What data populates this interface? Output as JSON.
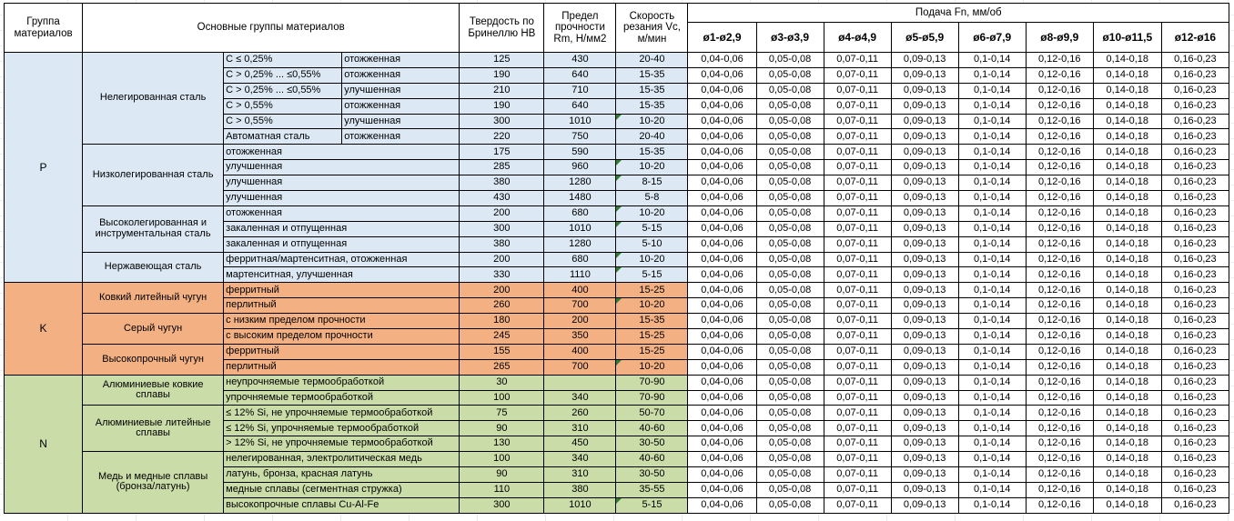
{
  "header": {
    "col_group": "Группа материалов",
    "col_main_groups": "Основные группы материалов",
    "col_hardness": "Твердость по Бринеллю HB",
    "col_strength": "Предел прочности Rm, Н/мм2",
    "col_speed": "Скорость резания Vc, м/мин",
    "feed_title": "Подача Fn, мм/об",
    "feed_cols": [
      "ø1-ø2,9",
      "ø3-ø3,9",
      "ø4-ø4,9",
      "ø5-ø5,9",
      "ø6-ø7,9",
      "ø8-ø9,9",
      "ø10-ø11,5",
      "ø12-ø16"
    ]
  },
  "feed_values": [
    "0,04-0,06",
    "0,05-0,08",
    "0,07-0,11",
    "0,09-0,13",
    "0,1-0,14",
    "0,12-0,16",
    "0,14-0,18",
    "0,16-0,23"
  ],
  "colors": {
    "p_blue": "#dce9f5",
    "k_orange": "#f3b183",
    "n_green": "#cadca8",
    "flag_green": "#2e7d32"
  },
  "groups": [
    {
      "code": "P",
      "color_key": "p_blue",
      "subgroups": [
        {
          "name": "Нелегированная сталь",
          "rows": [
            {
              "a": "C ≤ 0,25%",
              "b": "отожженная",
              "hb": "125",
              "rm": "430",
              "vc": "20-40",
              "flag": false
            },
            {
              "a": "C > 0,25% ... ≤0,55%",
              "b": "отожженная",
              "hb": "190",
              "rm": "640",
              "vc": "15-35",
              "flag": false
            },
            {
              "a": "C > 0,25% ... ≤0,55%",
              "b": "улучшенная",
              "hb": "210",
              "rm": "710",
              "vc": "15-35",
              "flag": false
            },
            {
              "a": "C > 0,55%",
              "b": "отожженная",
              "hb": "190",
              "rm": "640",
              "vc": "15-35",
              "flag": false
            },
            {
              "a": "C > 0,55%",
              "b": "улучшенная",
              "hb": "300",
              "rm": "1010",
              "vc": "10-20",
              "flag": true
            },
            {
              "a": "Автоматная сталь",
              "b": "отожженная",
              "hb": "220",
              "rm": "750",
              "vc": "20-40",
              "flag": false
            }
          ]
        },
        {
          "name": "Низколегированная сталь",
          "rows": [
            {
              "b": "отожженная",
              "hb": "175",
              "rm": "590",
              "vc": "15-35",
              "flag": false
            },
            {
              "b": "улучшенная",
              "hb": "285",
              "rm": "960",
              "vc": "10-20",
              "flag": true
            },
            {
              "b": "улучшенная",
              "hb": "380",
              "rm": "1280",
              "vc": "8-15",
              "flag": true
            },
            {
              "b": "улучшенная",
              "hb": "430",
              "rm": "1480",
              "vc": "5-8",
              "flag": false
            }
          ]
        },
        {
          "name": "Высоколегированная и инструментальная сталь",
          "rows": [
            {
              "b": "отожженная",
              "hb": "200",
              "rm": "680",
              "vc": "10-20",
              "flag": true
            },
            {
              "b": "закаленная и отпущенная",
              "hb": "300",
              "rm": "1010",
              "vc": "5-15",
              "flag": true
            },
            {
              "b": "закаленная и отпущенная",
              "hb": "380",
              "rm": "1280",
              "vc": "5-10",
              "flag": false
            }
          ]
        },
        {
          "name": "Нержавеющая сталь",
          "rows": [
            {
              "b": "ферритная/мартенситная, отожженная",
              "hb": "200",
              "rm": "680",
              "vc": "10-20",
              "flag": true
            },
            {
              "b": "мартенситная, улучшенная",
              "hb": "330",
              "rm": "1110",
              "vc": "5-15",
              "flag": true
            }
          ]
        }
      ]
    },
    {
      "code": "K",
      "color_key": "k_orange",
      "subgroups": [
        {
          "name": "Ковкий литейный чугун",
          "rows": [
            {
              "b": "ферритный",
              "hb": "200",
              "rm": "400",
              "vc": "15-25",
              "flag": false
            },
            {
              "b": "перлитный",
              "hb": "260",
              "rm": "700",
              "vc": "10-20",
              "flag": true
            }
          ]
        },
        {
          "name": "Серый чугун",
          "rows": [
            {
              "b": "с низким пределом прочности",
              "hb": "180",
              "rm": "200",
              "vc": "15-35",
              "flag": false
            },
            {
              "b": "с высоким пределом прочности",
              "hb": "245",
              "rm": "350",
              "vc": "15-25",
              "flag": false
            }
          ]
        },
        {
          "name": "Высокопрочный чугун",
          "rows": [
            {
              "b": "ферритный",
              "hb": "155",
              "rm": "400",
              "vc": "15-25",
              "flag": false
            },
            {
              "b": "перлитный",
              "hb": "265",
              "rm": "700",
              "vc": "10-20",
              "flag": true
            }
          ]
        }
      ]
    },
    {
      "code": "N",
      "color_key": "n_green",
      "subgroups": [
        {
          "name": "Алюминиевые ковкие сплавы",
          "rows": [
            {
              "b": "неупрочняемые термообработкой",
              "hb": "30",
              "rm": "",
              "vc": "70-90",
              "flag": false
            },
            {
              "b": "упрочняемые термообработкой",
              "hb": "100",
              "rm": "340",
              "vc": "70-90",
              "flag": false
            }
          ]
        },
        {
          "name": "Алюминиевые литейные сплавы",
          "rows": [
            {
              "b": "≤ 12% Si, не упрочняемые термообработкой",
              "hb": "75",
              "rm": "260",
              "vc": "50-70",
              "flag": false
            },
            {
              "b": "≤ 12% Si, упрочняемые термообработкой",
              "hb": "90",
              "rm": "310",
              "vc": "40-60",
              "flag": false
            },
            {
              "b": "> 12% Si, не упрочняемые термообработкой",
              "hb": "130",
              "rm": "450",
              "vc": "30-50",
              "flag": false
            }
          ]
        },
        {
          "name": "Медь и медные сплавы (бронза/латунь)",
          "rows": [
            {
              "b": "нелегированная, электролитическая медь",
              "hb": "100",
              "rm": "340",
              "vc": "40-60",
              "flag": false
            },
            {
              "b": "латунь, бронза, красная латунь",
              "hb": "90",
              "rm": "310",
              "vc": "30-50",
              "flag": false
            },
            {
              "b": "медные сплавы (сегментная стружка)",
              "hb": "110",
              "rm": "380",
              "vc": "35-55",
              "flag": false
            },
            {
              "b": "высокопрочные сплавы Cu-Al-Fe",
              "hb": "300",
              "rm": "1010",
              "vc": "5-15",
              "flag": true
            }
          ]
        }
      ]
    }
  ]
}
